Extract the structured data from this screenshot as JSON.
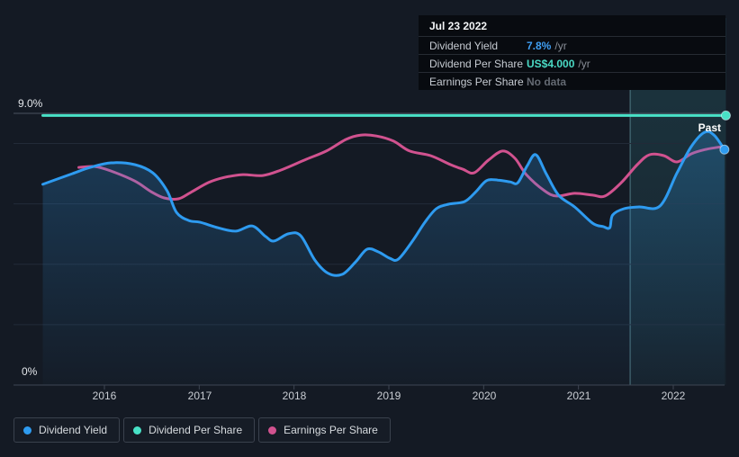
{
  "tooltip": {
    "date": "Jul 23 2022",
    "rows": [
      {
        "label": "Dividend Yield",
        "value": "7.8%",
        "suffix": "/yr",
        "value_color": "#3f9ef2"
      },
      {
        "label": "Dividend Per Share",
        "value": "US$4.000",
        "suffix": "/yr",
        "value_color": "#4ad9c4"
      },
      {
        "label": "Earnings Per Share",
        "value": "No data",
        "suffix": "",
        "value_color": "#646a73"
      }
    ]
  },
  "legend": {
    "items": [
      {
        "label": "Dividend Yield",
        "color": "#2e9bf0"
      },
      {
        "label": "Dividend Per Share",
        "color": "#48e1c6"
      },
      {
        "label": "Earnings Per Share",
        "color": "#d1528f"
      }
    ]
  },
  "chart_data": {
    "type": "line",
    "title": "Dividend history chart",
    "x_axis": {
      "labels": [
        "2016",
        "2017",
        "2018",
        "2019",
        "2020",
        "2021",
        "2022"
      ],
      "tick_years": [
        2016,
        2017,
        2018,
        2019,
        2020,
        2021,
        2022
      ],
      "range_years": [
        2015.35,
        2022.56
      ]
    },
    "y_axis": {
      "top_label": "9.0%",
      "bottom_label": "0%",
      "min": 0,
      "max": 9,
      "unit": "%",
      "gridlines_pct": [
        2,
        4,
        6,
        8
      ],
      "top_line_pct": 9,
      "grid_on": true
    },
    "past_band": {
      "label": "Past",
      "start_year": 2021.545,
      "end_year": 2022.555
    },
    "legend_position": "bottom-left",
    "series": [
      {
        "name": "Earnings Per Share",
        "color": "#d1528f",
        "unit": "visual-%-scale",
        "area": false,
        "end_dot": false,
        "points": [
          [
            2015.73,
            7.21
          ],
          [
            2015.9,
            7.24
          ],
          [
            2016.07,
            7.09
          ],
          [
            2016.32,
            6.76
          ],
          [
            2016.49,
            6.41
          ],
          [
            2016.63,
            6.2
          ],
          [
            2016.78,
            6.17
          ],
          [
            2016.91,
            6.38
          ],
          [
            2017.1,
            6.71
          ],
          [
            2017.27,
            6.88
          ],
          [
            2017.46,
            6.97
          ],
          [
            2017.67,
            6.94
          ],
          [
            2017.86,
            7.12
          ],
          [
            2018.13,
            7.48
          ],
          [
            2018.34,
            7.75
          ],
          [
            2018.55,
            8.14
          ],
          [
            2018.7,
            8.28
          ],
          [
            2018.87,
            8.25
          ],
          [
            2019.05,
            8.08
          ],
          [
            2019.22,
            7.75
          ],
          [
            2019.44,
            7.6
          ],
          [
            2019.65,
            7.3
          ],
          [
            2019.78,
            7.15
          ],
          [
            2019.9,
            7.03
          ],
          [
            2020.05,
            7.45
          ],
          [
            2020.2,
            7.75
          ],
          [
            2020.33,
            7.51
          ],
          [
            2020.45,
            6.97
          ],
          [
            2020.64,
            6.44
          ],
          [
            2020.77,
            6.26
          ],
          [
            2020.96,
            6.35
          ],
          [
            2021.15,
            6.29
          ],
          [
            2021.28,
            6.26
          ],
          [
            2021.45,
            6.7
          ],
          [
            2021.62,
            7.3
          ],
          [
            2021.75,
            7.63
          ],
          [
            2021.9,
            7.6
          ],
          [
            2022.04,
            7.39
          ],
          [
            2022.19,
            7.66
          ],
          [
            2022.35,
            7.81
          ],
          [
            2022.52,
            7.9
          ]
        ]
      },
      {
        "name": "Dividend Per Share",
        "color": "#48e1c6",
        "unit": "US$",
        "value_label": "US$4.000",
        "area": false,
        "end_dot": true,
        "points": [
          [
            2015.35,
            8.93
          ],
          [
            2022.555,
            8.93
          ]
        ]
      },
      {
        "name": "Dividend Yield",
        "color": "#2e9bf0",
        "unit": "%",
        "area": true,
        "end_dot": true,
        "points": [
          [
            2015.35,
            6.65
          ],
          [
            2015.66,
            7.0
          ],
          [
            2015.85,
            7.21
          ],
          [
            2016.07,
            7.36
          ],
          [
            2016.32,
            7.3
          ],
          [
            2016.51,
            7.03
          ],
          [
            2016.66,
            6.44
          ],
          [
            2016.76,
            5.72
          ],
          [
            2016.89,
            5.45
          ],
          [
            2017.01,
            5.39
          ],
          [
            2017.22,
            5.19
          ],
          [
            2017.39,
            5.1
          ],
          [
            2017.56,
            5.27
          ],
          [
            2017.7,
            4.92
          ],
          [
            2017.79,
            4.77
          ],
          [
            2017.94,
            5.01
          ],
          [
            2018.07,
            4.95
          ],
          [
            2018.22,
            4.14
          ],
          [
            2018.36,
            3.7
          ],
          [
            2018.51,
            3.67
          ],
          [
            2018.65,
            4.08
          ],
          [
            2018.77,
            4.5
          ],
          [
            2018.89,
            4.41
          ],
          [
            2019.01,
            4.2
          ],
          [
            2019.1,
            4.17
          ],
          [
            2019.25,
            4.77
          ],
          [
            2019.38,
            5.39
          ],
          [
            2019.5,
            5.84
          ],
          [
            2019.63,
            5.99
          ],
          [
            2019.8,
            6.08
          ],
          [
            2019.92,
            6.41
          ],
          [
            2020.03,
            6.77
          ],
          [
            2020.15,
            6.79
          ],
          [
            2020.28,
            6.73
          ],
          [
            2020.36,
            6.7
          ],
          [
            2020.46,
            7.27
          ],
          [
            2020.55,
            7.63
          ],
          [
            2020.66,
            7.0
          ],
          [
            2020.79,
            6.29
          ],
          [
            2020.96,
            5.9
          ],
          [
            2021.15,
            5.36
          ],
          [
            2021.26,
            5.25
          ],
          [
            2021.33,
            5.21
          ],
          [
            2021.36,
            5.63
          ],
          [
            2021.48,
            5.84
          ],
          [
            2021.64,
            5.9
          ],
          [
            2021.86,
            5.93
          ],
          [
            2022.04,
            7.03
          ],
          [
            2022.19,
            7.9
          ],
          [
            2022.33,
            8.37
          ],
          [
            2022.43,
            8.28
          ],
          [
            2022.54,
            7.8
          ]
        ]
      }
    ]
  }
}
